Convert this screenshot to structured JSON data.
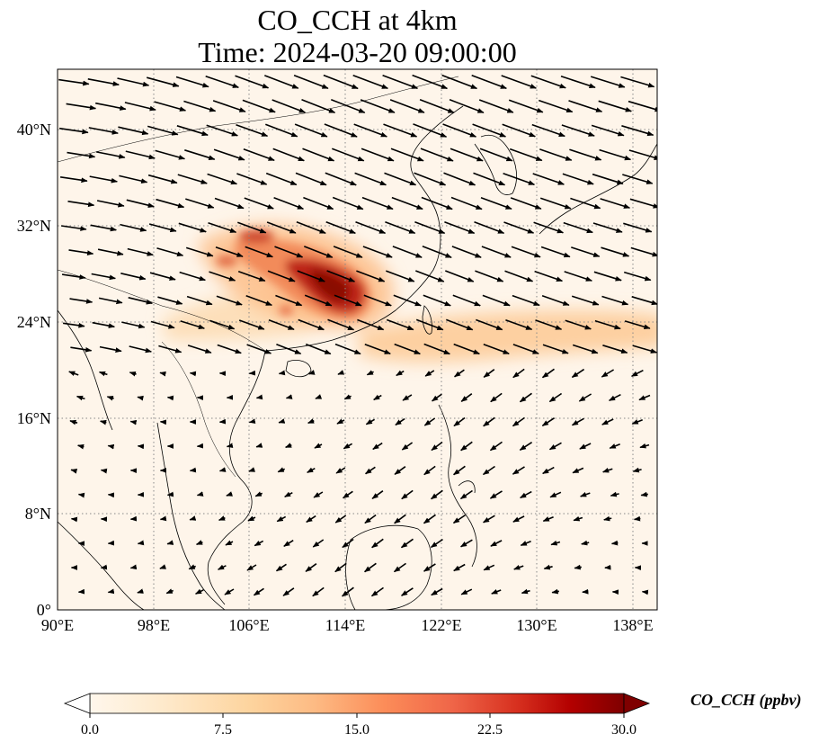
{
  "title": {
    "line1": "CO_CCH at 4km",
    "line2": "Time: 2024-03-20 09:00:00"
  },
  "map": {
    "variable": "CO_CCH",
    "level": "4km",
    "time": "2024-03-20 09:00:00",
    "lon_range": [
      90,
      140
    ],
    "lat_range": [
      0,
      45
    ],
    "lon_ticks": [
      "90°E",
      "98°E",
      "106°E",
      "114°E",
      "122°E",
      "130°E",
      "138°E"
    ],
    "lat_ticks": [
      "0°",
      "8°N",
      "16°N",
      "24°N",
      "32°N",
      "40°N"
    ],
    "gridlines": true,
    "colormap": "OrRd",
    "colors": {
      "low": "#fff7ec",
      "mid": "#fdbb84",
      "high": "#d7301f",
      "max": "#7f0000",
      "coastline": "#000000",
      "wind_arrow": "#000000"
    }
  },
  "colorbar": {
    "label": "CO_CCH (ppbv)",
    "ticks": [
      "0.0",
      "7.5",
      "15.0",
      "22.5",
      "30.0"
    ],
    "min": 0,
    "max": 30,
    "extend": "both"
  }
}
